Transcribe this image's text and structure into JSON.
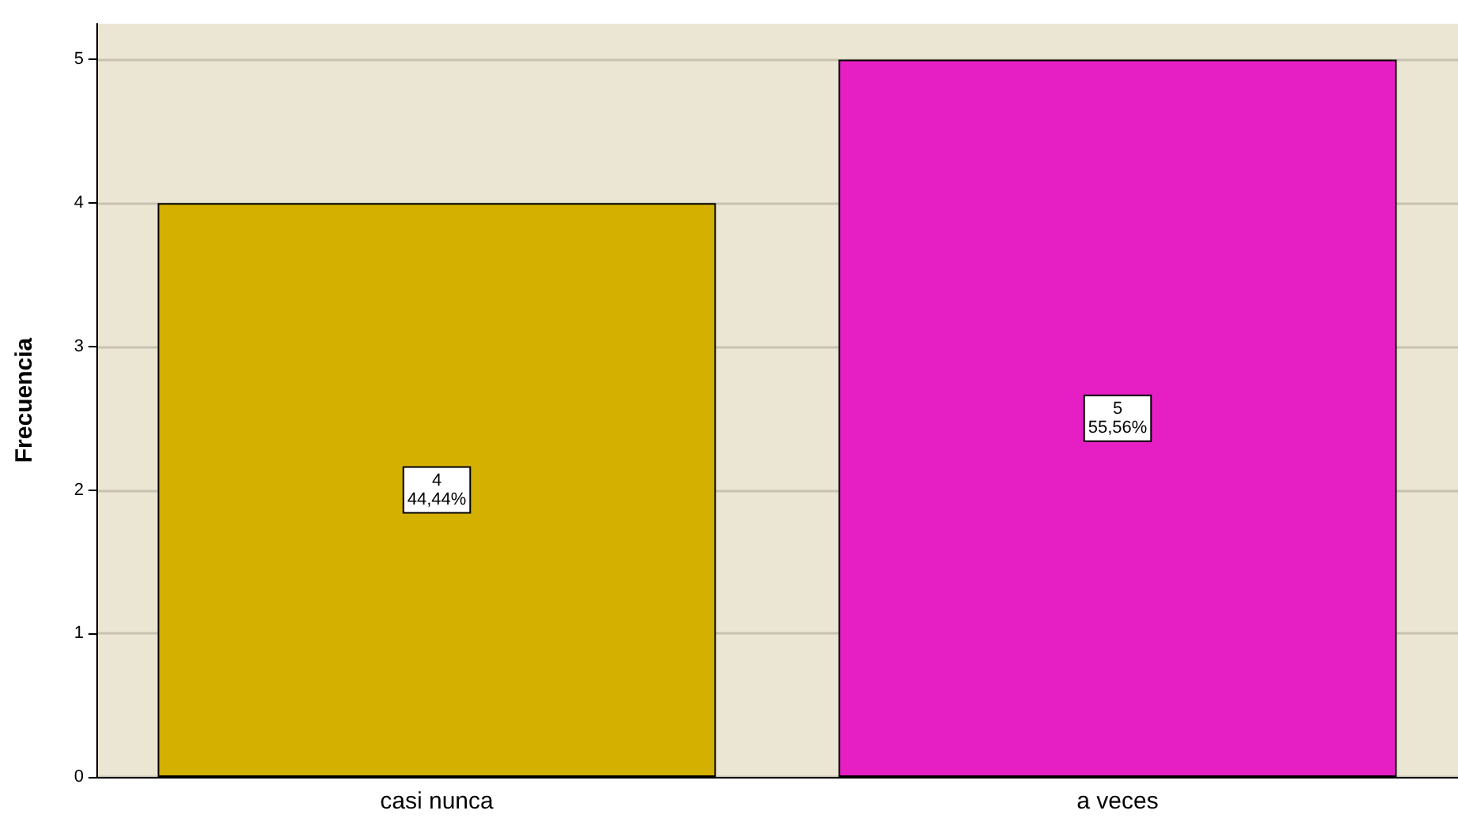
{
  "chart_data": {
    "type": "bar",
    "ylabel": "Frecuencia",
    "categories": [
      "casi nunca",
      "a veces"
    ],
    "values": [
      4,
      5
    ],
    "colors": [
      "#d4b000",
      "#e61fc4"
    ],
    "value_labels": [
      "4\n44,44%",
      "5\n55,56%"
    ],
    "ylim": [
      0,
      5.25
    ],
    "yticks": [
      0,
      1,
      2,
      3,
      4,
      5
    ],
    "grid": "y"
  }
}
